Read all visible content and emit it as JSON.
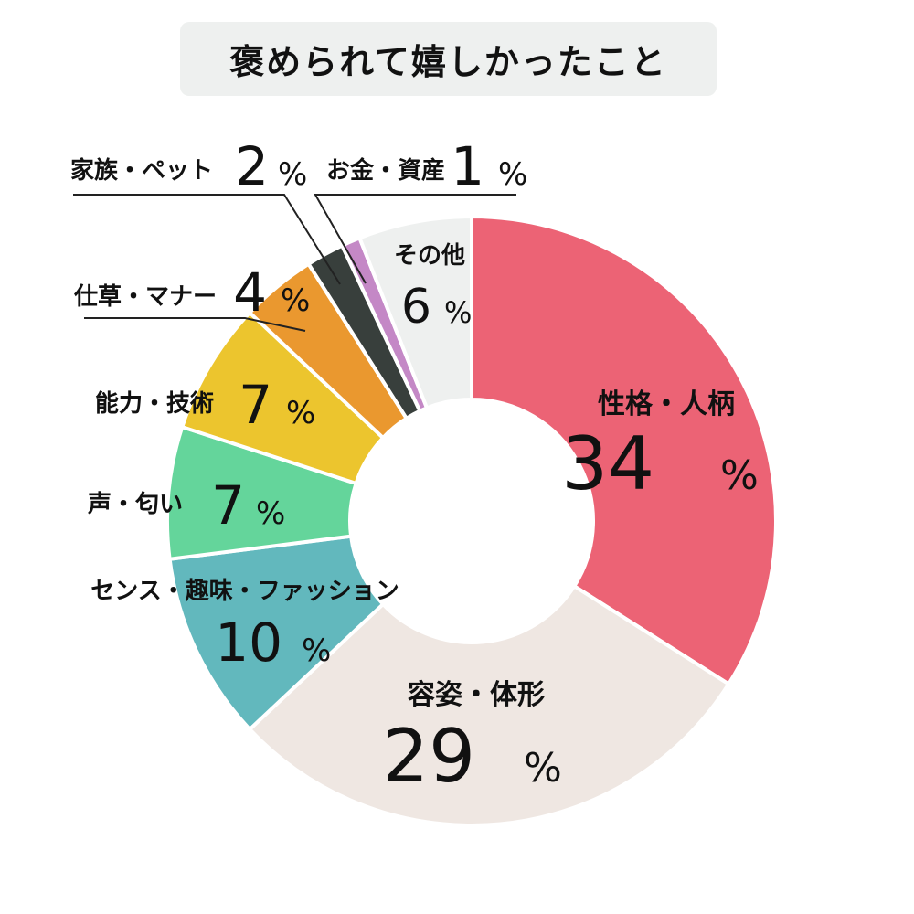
{
  "title": "褒められて嬉しかったこと",
  "chart_data": {
    "type": "pie",
    "style": "donut",
    "start": "12 o'clock, clockwise",
    "unit": "%",
    "slices": [
      {
        "label": "性格・人柄",
        "value": 34,
        "display": "34",
        "color": "#ec6375"
      },
      {
        "label": "容姿・体形",
        "value": 29,
        "display": "29",
        "color": "#efe7e2"
      },
      {
        "label": "センス・趣味・ファッション",
        "value": 10,
        "display": "10",
        "color": "#62b8bd"
      },
      {
        "label": "声・匂い",
        "value": 7,
        "display": "7",
        "color": "#64d59b"
      },
      {
        "label": "能力・技術",
        "value": 7,
        "display": "7",
        "color": "#ecc52e"
      },
      {
        "label": "仕草・マナー",
        "value": 4,
        "display": "4",
        "color": "#ea982f"
      },
      {
        "label": "家族・ペット",
        "value": 2,
        "display": "2",
        "color": "#383f3c"
      },
      {
        "label": "お金・資産",
        "value": 1,
        "display": "1",
        "color": "#c488c6"
      },
      {
        "label": "その他",
        "value": 6,
        "display": "6",
        "color": "#eef0ef"
      }
    ]
  }
}
